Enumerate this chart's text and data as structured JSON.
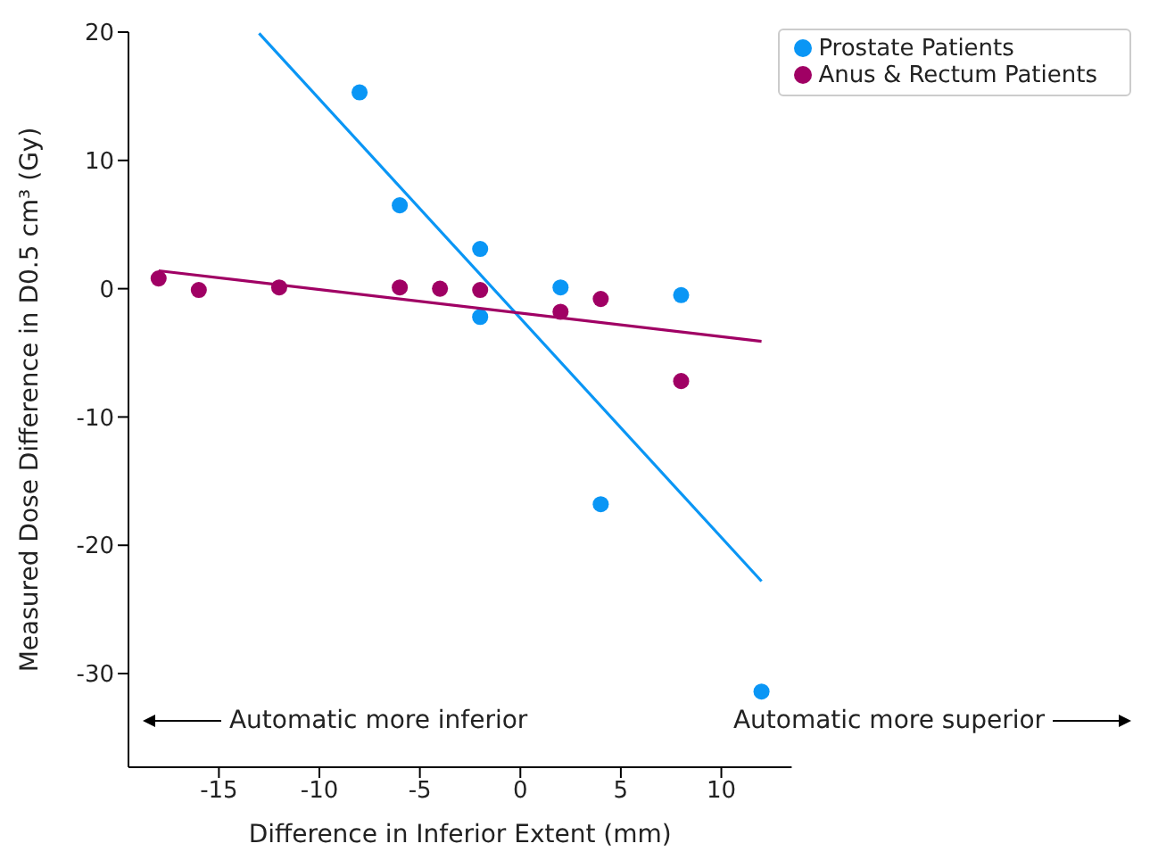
{
  "chart_data": {
    "type": "scatter",
    "xlabel": "Difference in Inferior Extent (mm)",
    "ylabel": "Measured Dose Difference in D0.5 cm³ (Gy)",
    "xlim": [
      -19.5,
      13.5
    ],
    "ylim": [
      -37.3,
      20
    ],
    "xticks": [
      -15,
      -10,
      -5,
      0,
      5,
      10
    ],
    "yticks": [
      -30,
      -20,
      -10,
      0,
      10,
      20
    ],
    "grid": false,
    "legend": "top right",
    "series": [
      {
        "name": "Prostate Patients",
        "color": "#0a96f5",
        "marker": "circle",
        "x": [
          -8,
          -6,
          -2,
          -2,
          2,
          4,
          8,
          12
        ],
        "values": [
          15.3,
          6.5,
          3.1,
          -2.2,
          0.1,
          -16.8,
          -0.5,
          -31.4
        ]
      },
      {
        "name": "Anus & Rectum Patients",
        "color": "#a00064",
        "marker": "circle",
        "x": [
          -18,
          -16,
          -12,
          -6,
          -4,
          -2,
          2,
          4,
          8
        ],
        "values": [
          0.8,
          -0.1,
          0.1,
          0.1,
          0,
          -0.1,
          -1.8,
          -0.8,
          -7.2
        ]
      },
      {
        "type": "line",
        "color": "#0a96f5",
        "marker": "none",
        "x": [
          -13,
          12
        ],
        "values": [
          19.9,
          -22.8
        ]
      },
      {
        "type": "line",
        "color": "#a00064",
        "marker": "none",
        "x": [
          -18,
          12
        ],
        "values": [
          1.4,
          -4.1
        ]
      }
    ],
    "annotations": [
      "Automatic more inferior",
      "Automatic more superior"
    ]
  }
}
